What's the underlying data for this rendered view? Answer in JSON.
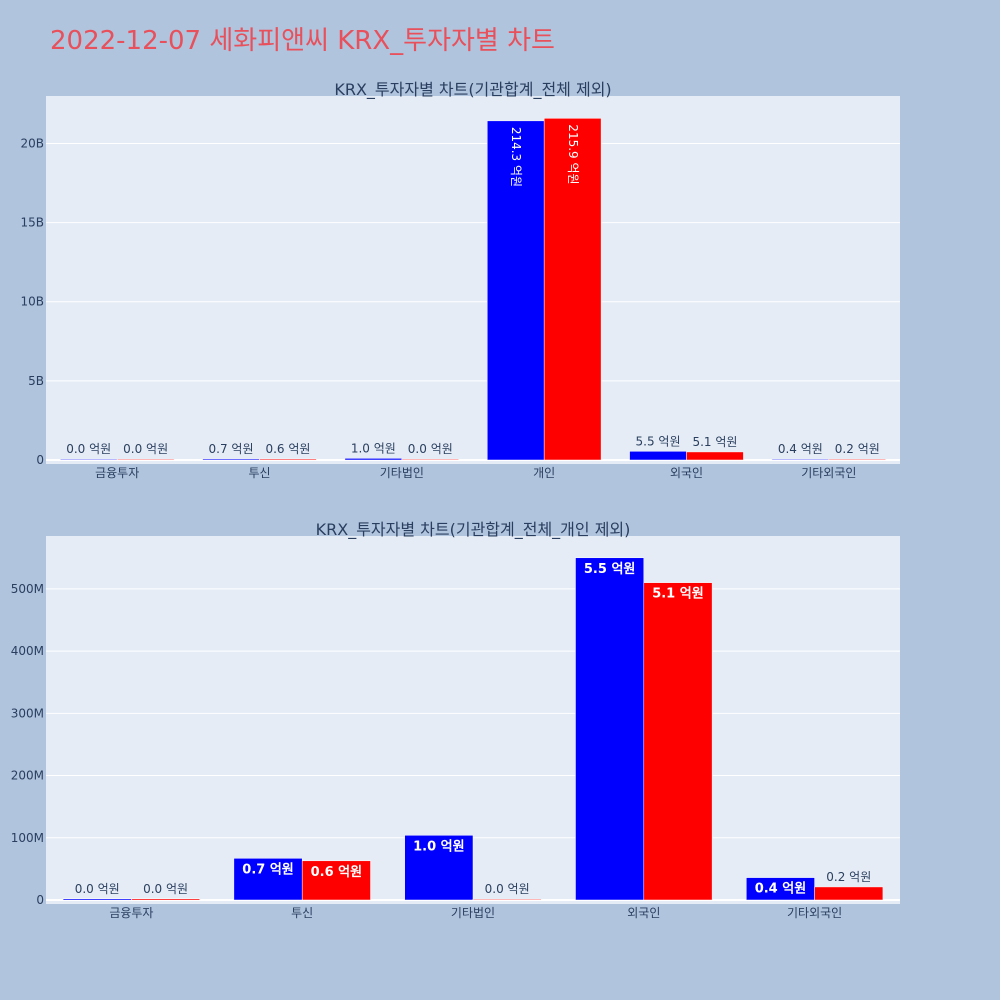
{
  "title": "2022-12-07 세화피앤씨 KRX_투자자별 차트",
  "colors": {
    "buy": "#0000ff",
    "sell": "#ff0000",
    "background": "#b0c4de",
    "plot_bg": "#e5ecf6",
    "title": "#e8505b"
  },
  "chart_data": [
    {
      "type": "bar",
      "title": "KRX_투자자별 차트(기관합계_전체 제외)",
      "categories": [
        "금융투자",
        "투신",
        "기타법인",
        "개인",
        "외국인",
        "기타외국인"
      ],
      "ylim": [
        0,
        23000000000
      ],
      "yticks": [
        0,
        5000000000,
        10000000000,
        15000000000,
        20000000000
      ],
      "yticklabels": [
        "0",
        "5B",
        "10B",
        "15B",
        "20B"
      ],
      "grid": true,
      "series": [
        {
          "color": "#0000ff",
          "values": [
            2000000,
            67000000,
            104000000,
            21430000000,
            550000000,
            36000000
          ],
          "labels": [
            "0.0 억원",
            "0.7 억원",
            "1.0 억원",
            "214.3 억원",
            "5.5 억원",
            "0.4 억원"
          ]
        },
        {
          "color": "#ff0000",
          "values": [
            2000000,
            63000000,
            1000000,
            21590000000,
            510000000,
            21000000
          ],
          "labels": [
            "0.0 억원",
            "0.6 억원",
            "0.0 억원",
            "215.9 억원",
            "5.1 억원",
            "0.2 억원"
          ]
        }
      ]
    },
    {
      "type": "bar",
      "title": "KRX_투자자별 차트(기관합계_전체_개인 제외)",
      "categories": [
        "금융투자",
        "투신",
        "기타법인",
        "외국인",
        "기타외국인"
      ],
      "ylim": [
        0,
        585000000
      ],
      "yticks": [
        0,
        100000000,
        200000000,
        300000000,
        400000000,
        500000000
      ],
      "yticklabels": [
        "0",
        "100M",
        "200M",
        "300M",
        "400M",
        "500M"
      ],
      "grid": true,
      "series": [
        {
          "color": "#0000ff",
          "values": [
            2000000,
            67000000,
            104000000,
            550000000,
            36000000
          ],
          "labels": [
            "0.0 억원",
            "0.7 억원",
            "1.0 억원",
            "5.5 억원",
            "0.4 억원"
          ]
        },
        {
          "color": "#ff0000",
          "values": [
            2000000,
            63000000,
            1000000,
            510000000,
            21000000
          ],
          "labels": [
            "0.0 억원",
            "0.6 억원",
            "0.0 억원",
            "5.1 억원",
            "0.2 억원"
          ]
        }
      ]
    }
  ]
}
